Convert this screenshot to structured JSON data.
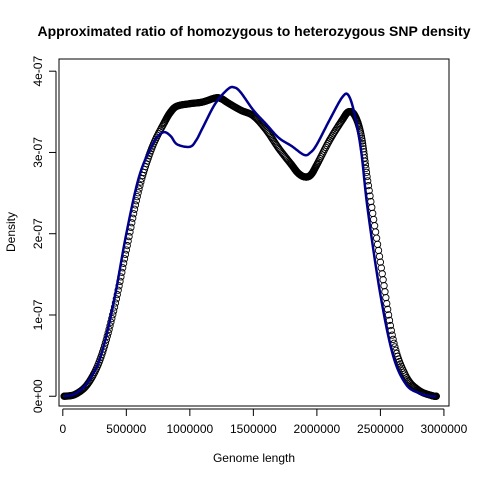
{
  "chart_data": {
    "type": "line",
    "title": "Approximated ratio of homozygous to heterozygous SNP density",
    "xlabel": "Genome length",
    "ylabel": "Density",
    "xlim": [
      -30000,
      3040000
    ],
    "ylim": [
      -1.2e-08,
      4.15e-07
    ],
    "x_ticks": [
      0,
      500000,
      1000000,
      1500000,
      2000000,
      2500000,
      3000000
    ],
    "x_tick_labels": [
      "0",
      "500000",
      "1000000",
      "1500000",
      "2000000",
      "2500000",
      "3000000"
    ],
    "y_ticks": [
      0,
      1e-07,
      2e-07,
      3e-07,
      4e-07
    ],
    "y_tick_labels": [
      "0e+00",
      "1e-07",
      "2e-07",
      "3e-07",
      "4e-07"
    ],
    "colors": {
      "line": "#00008b",
      "points": "#000000"
    },
    "series": [
      {
        "style": "points",
        "x": [
          10000,
          100000,
          200000,
          300000,
          400000,
          500000,
          600000,
          700000,
          800000,
          850000,
          900000,
          1000000,
          1100000,
          1200000,
          1250000,
          1300000,
          1400000,
          1500000,
          1600000,
          1700000,
          1800000,
          1850000,
          1900000,
          1950000,
          2000000,
          2100000,
          2200000,
          2250000,
          2300000,
          2350000,
          2400000,
          2500000,
          2600000,
          2700000,
          2800000,
          2900000,
          2940000
        ],
        "y": [
          0.0,
          2.5e-09,
          1.6e-08,
          4.8e-08,
          1.05e-07,
          1.8e-07,
          2.55e-07,
          3.05e-07,
          3.37e-07,
          3.5e-07,
          3.57e-07,
          3.6e-07,
          3.62e-07,
          3.67e-07,
          3.66e-07,
          3.61e-07,
          3.52e-07,
          3.45e-07,
          3.28e-07,
          3.05e-07,
          2.85e-07,
          2.75e-07,
          2.7e-07,
          2.72e-07,
          2.85e-07,
          3.15e-07,
          3.4e-07,
          3.5e-07,
          3.45e-07,
          3.2e-07,
          2.65e-07,
          1.65e-07,
          7e-08,
          2.5e-08,
          7.5e-09,
          1e-09,
          0.0
        ]
      },
      {
        "style": "line",
        "x": [
          10000,
          100000,
          200000,
          300000,
          400000,
          500000,
          600000,
          700000,
          750000,
          800000,
          850000,
          900000,
          1000000,
          1050000,
          1100000,
          1200000,
          1300000,
          1350000,
          1400000,
          1500000,
          1600000,
          1700000,
          1800000,
          1900000,
          1950000,
          2000000,
          2100000,
          2200000,
          2250000,
          2300000,
          2350000,
          2400000,
          2500000,
          2600000,
          2700000,
          2800000,
          2900000,
          2940000
        ],
        "y": [
          0.0,
          3.5e-09,
          1.8e-08,
          5e-08,
          1.15e-07,
          2e-07,
          2.7e-07,
          3.08e-07,
          3.2e-07,
          3.25e-07,
          3.2e-07,
          3.1e-07,
          3.07e-07,
          3.15e-07,
          3.3e-07,
          3.6e-07,
          3.78e-07,
          3.8e-07,
          3.74e-07,
          3.52e-07,
          3.35e-07,
          3.18e-07,
          3.08e-07,
          2.97e-07,
          3e-07,
          3.1e-07,
          3.4e-07,
          3.68e-07,
          3.7e-07,
          3.45e-07,
          3e-07,
          2.3e-07,
          1.25e-07,
          5e-08,
          1.5e-08,
          4e-09,
          0.0,
          0.0
        ]
      }
    ]
  }
}
